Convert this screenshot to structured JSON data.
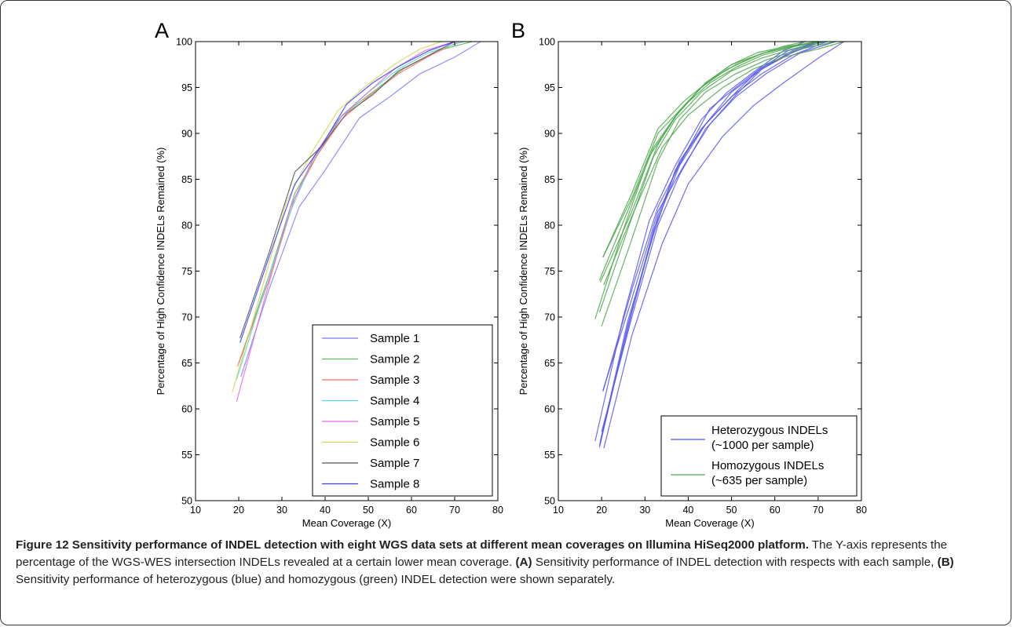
{
  "caption": {
    "label": "Figure 12",
    "title": "Sensitivity performance of INDEL detection with eight WGS data sets at different mean coverages on Illumina HiSeq2000 platform.",
    "sentence1": " The Y-axis represents the percentage of the WGS-WES intersection INDELs revealed at a certain lower mean coverage. ",
    "marker_a": "(A)",
    "sentence2": " Sensitivity performance of INDEL detection with respects with each sample, ",
    "marker_b": "(B)",
    "sentence3": " Sensitivity performance of heterozygous (blue) and homozygous (green) INDEL detection were shown separately."
  },
  "chart_data": [
    {
      "panel": "A",
      "type": "line",
      "xlabel": "Mean Coverage (X)",
      "ylabel": "Percentage of High Confidence INDELs Remained (%)",
      "xlim": [
        10,
        80
      ],
      "ylim": [
        50,
        100
      ],
      "xticks": [
        "10",
        "20",
        "30",
        "40",
        "50",
        "60",
        "70",
        "80"
      ],
      "yticks": [
        "50",
        "55",
        "60",
        "65",
        "70",
        "75",
        "80",
        "85",
        "90",
        "95",
        "100"
      ],
      "grid": false,
      "legend_position": "bottom-right",
      "series": [
        {
          "name": "Sample 1",
          "color": "#7b7bff",
          "x": [
            20.5,
            27,
            34,
            40,
            48,
            55,
            62,
            70,
            76
          ],
          "y": [
            63.5,
            73,
            82,
            86,
            91.7,
            94,
            96.5,
            98.3,
            100
          ]
        },
        {
          "name": "Sample 2",
          "color": "#5cb85c",
          "x": [
            20,
            27,
            33,
            38,
            44,
            51,
            58,
            66,
            74
          ],
          "y": [
            65,
            74.5,
            83.5,
            87.5,
            92,
            94.5,
            97,
            99,
            100
          ]
        },
        {
          "name": "Sample 3",
          "color": "#ff6b6b",
          "x": [
            19.7,
            27,
            33,
            38,
            44,
            50,
            57,
            64,
            71
          ],
          "y": [
            64.6,
            74,
            83,
            87.5,
            91.6,
            94,
            96.5,
            98.4,
            100
          ]
        },
        {
          "name": "Sample 4",
          "color": "#5cd6d6",
          "x": [
            19.5,
            26,
            32,
            37,
            43,
            50,
            57,
            64,
            72
          ],
          "y": [
            63.2,
            73,
            81.5,
            87,
            91.5,
            94.5,
            97,
            98.8,
            100
          ]
        },
        {
          "name": "Sample 5",
          "color": "#e06be0",
          "x": [
            19.5,
            26,
            32,
            38,
            44,
            50,
            56,
            63,
            70
          ],
          "y": [
            60.8,
            72,
            82,
            88,
            92,
            94.5,
            97,
            99,
            100
          ]
        },
        {
          "name": "Sample 6",
          "color": "#d6d65c",
          "x": [
            18.5,
            25,
            31,
            37,
            43,
            49,
            56,
            62,
            67
          ],
          "y": [
            61.8,
            72.5,
            82.5,
            88,
            92.5,
            95,
            97.5,
            99.2,
            100
          ]
        },
        {
          "name": "Sample 7",
          "color": "#555555",
          "x": [
            20.3,
            27,
            33,
            39,
            45,
            51,
            57,
            64,
            70
          ],
          "y": [
            67.7,
            77,
            85.8,
            88.5,
            92.2,
            94.2,
            96.8,
            98.5,
            100
          ]
        },
        {
          "name": "Sample 8",
          "color": "#3b3bff",
          "x": [
            20.3,
            27,
            33,
            39,
            45,
            51,
            57,
            64,
            70
          ],
          "y": [
            67.2,
            76.5,
            84.5,
            88.5,
            93.2,
            95.5,
            97.3,
            99,
            100
          ]
        }
      ]
    },
    {
      "panel": "B",
      "type": "line",
      "xlabel": "Mean Coverage (X)",
      "ylabel": "Percentage of High Confidence INDELs Remained (%)",
      "xlim": [
        10,
        80
      ],
      "ylim": [
        50,
        100
      ],
      "xticks": [
        "10",
        "20",
        "30",
        "40",
        "50",
        "60",
        "70",
        "80"
      ],
      "yticks": [
        "50",
        "55",
        "60",
        "65",
        "70",
        "75",
        "80",
        "85",
        "90",
        "95",
        "100"
      ],
      "grid": false,
      "legend_position": "bottom-right",
      "legend": [
        {
          "line1": "Heterozygous INDELs",
          "line2": "(~1000 per sample)",
          "color": "#5555ee"
        },
        {
          "line1": "Homozygous INDELs",
          "line2": "(~635 per sample)",
          "color": "#4aa84a"
        }
      ],
      "series": [
        {
          "group": "heterozygous",
          "color": "#5555ee",
          "x": [
            20.5,
            27,
            34,
            40,
            48,
            55,
            62,
            70,
            76
          ],
          "y": [
            55.7,
            68,
            78,
            84.5,
            89.7,
            93,
            95.5,
            98.2,
            100
          ]
        },
        {
          "group": "heterozygous",
          "color": "#5555ee",
          "x": [
            20,
            27,
            33,
            38,
            44,
            51,
            58,
            66,
            74
          ],
          "y": [
            57.5,
            70,
            80,
            85.5,
            90.5,
            94,
            96.5,
            98.8,
            100
          ]
        },
        {
          "group": "heterozygous",
          "color": "#5555ee",
          "x": [
            19.7,
            27,
            33,
            38,
            44,
            50,
            57,
            64,
            71
          ],
          "y": [
            56.5,
            70.5,
            81,
            87,
            91,
            94.5,
            97,
            98.8,
            100
          ]
        },
        {
          "group": "heterozygous",
          "color": "#5555ee",
          "x": [
            19.5,
            26,
            32,
            37,
            43,
            50,
            57,
            64,
            72
          ],
          "y": [
            56,
            69.5,
            79,
            86,
            90.5,
            94,
            96.5,
            98.5,
            100
          ]
        },
        {
          "group": "heterozygous",
          "color": "#5555ee",
          "x": [
            19.5,
            26,
            32,
            38,
            44,
            50,
            56,
            63,
            70
          ],
          "y": [
            55.8,
            69,
            79.5,
            86.5,
            91,
            94,
            96.8,
            99,
            100
          ]
        },
        {
          "group": "heterozygous",
          "color": "#5555ee",
          "x": [
            18.5,
            25,
            31,
            37,
            43,
            49,
            56,
            62,
            67
          ],
          "y": [
            56.5,
            70,
            80.5,
            86.5,
            91.5,
            94.5,
            97,
            99,
            100
          ]
        },
        {
          "group": "heterozygous",
          "color": "#5555ee",
          "x": [
            20.3,
            27,
            33,
            39,
            45,
            51,
            57,
            64,
            70
          ],
          "y": [
            61.9,
            73,
            82,
            87.5,
            92.7,
            95,
            97.2,
            98.8,
            100
          ]
        },
        {
          "group": "heterozygous",
          "color": "#5555ee",
          "x": [
            20.3,
            27,
            33,
            39,
            45,
            51,
            57,
            64,
            70
          ],
          "y": [
            62,
            72,
            81.5,
            86.5,
            91,
            94.2,
            97,
            99,
            100
          ]
        },
        {
          "group": "homozygous",
          "color": "#4aa84a",
          "x": [
            20.5,
            27,
            34,
            40,
            48,
            55,
            62,
            70,
            76
          ],
          "y": [
            73.5,
            81,
            88.5,
            92,
            95,
            97,
            98.3,
            99.2,
            100
          ]
        },
        {
          "group": "homozygous",
          "color": "#4aa84a",
          "x": [
            20,
            27,
            33,
            38,
            44,
            51,
            58,
            66,
            74
          ],
          "y": [
            69,
            78.5,
            87,
            91.5,
            94.5,
            96.5,
            98,
            99.2,
            100
          ]
        },
        {
          "group": "homozygous",
          "color": "#4aa84a",
          "x": [
            19.7,
            27,
            33,
            38,
            44,
            50,
            57,
            64,
            71
          ],
          "y": [
            73.8,
            81.5,
            88.8,
            92.5,
            95.5,
            97.5,
            98.7,
            99.5,
            100
          ]
        },
        {
          "group": "homozygous",
          "color": "#4aa84a",
          "x": [
            19.5,
            26,
            32,
            37,
            43,
            50,
            57,
            64,
            72
          ],
          "y": [
            70.5,
            79.5,
            87.5,
            91.5,
            94.5,
            96.8,
            98.2,
            99.2,
            100
          ]
        },
        {
          "group": "homozygous",
          "color": "#4aa84a",
          "x": [
            19.5,
            26,
            32,
            38,
            44,
            50,
            56,
            63,
            70
          ],
          "y": [
            74,
            81.5,
            88.5,
            92.5,
            95.5,
            97.5,
            98.8,
            99.5,
            100
          ]
        },
        {
          "group": "homozygous",
          "color": "#4aa84a",
          "x": [
            18.5,
            25,
            31,
            37,
            43,
            49,
            56,
            62,
            67
          ],
          "y": [
            69.8,
            79.5,
            87.5,
            91.8,
            95,
            97,
            98.5,
            99.5,
            100
          ]
        },
        {
          "group": "homozygous",
          "color": "#4aa84a",
          "x": [
            20.3,
            27,
            33,
            39,
            45,
            51,
            57,
            64,
            70
          ],
          "y": [
            76.5,
            83.5,
            90.5,
            93.5,
            95.8,
            97.5,
            98.7,
            99.5,
            100
          ]
        },
        {
          "group": "homozygous",
          "color": "#4aa84a",
          "x": [
            20.3,
            27,
            33,
            39,
            45,
            51,
            57,
            64,
            70
          ],
          "y": [
            76.5,
            83,
            90,
            93,
            95.5,
            97.2,
            98.5,
            99.4,
            100
          ]
        }
      ]
    }
  ]
}
